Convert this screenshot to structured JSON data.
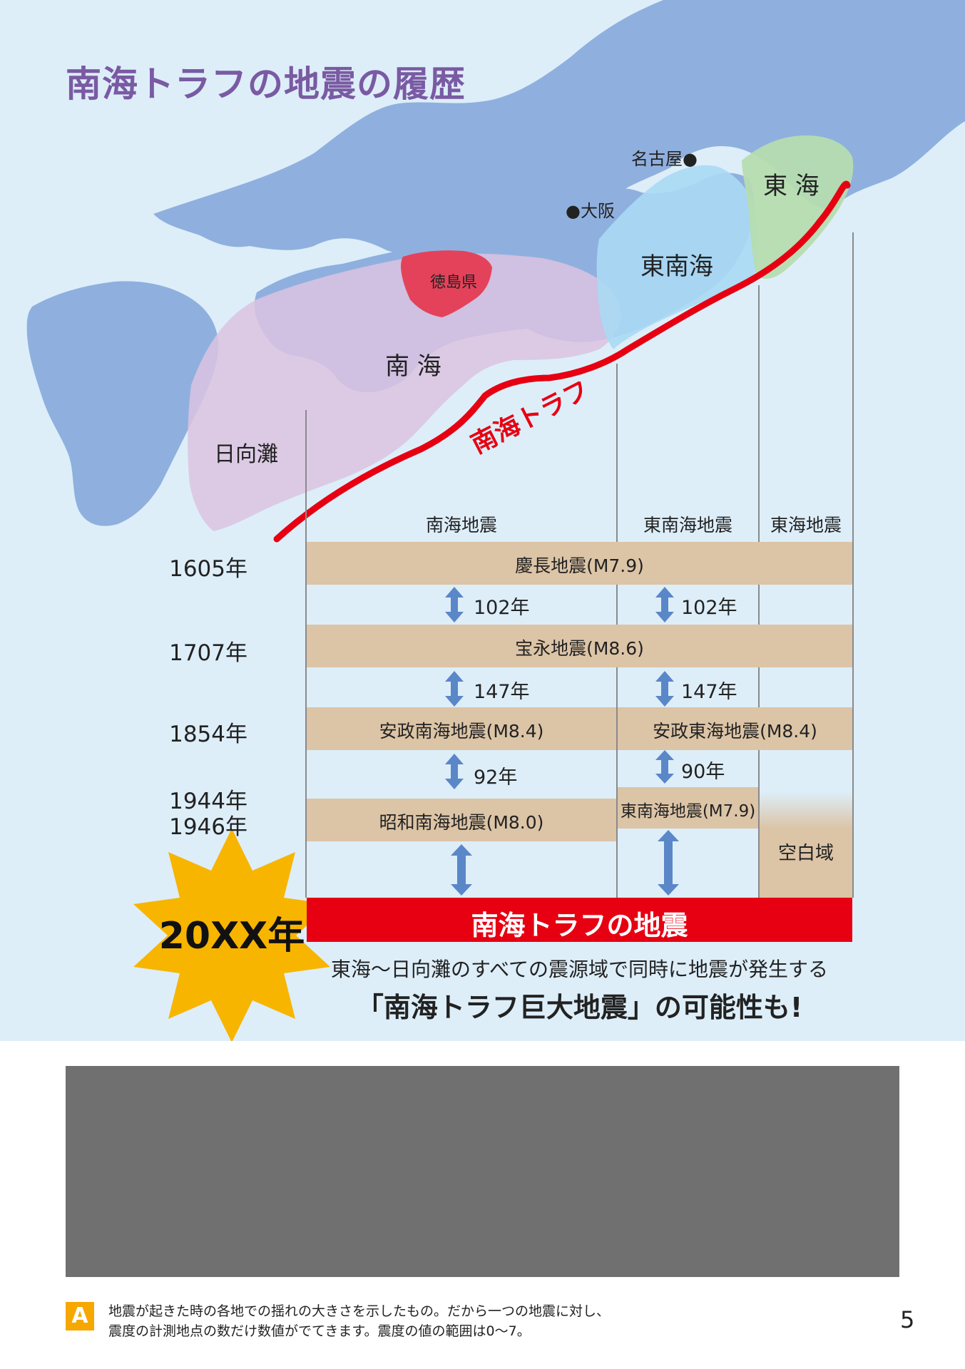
{
  "title": "南海トラフの地震の履歴",
  "map": {
    "cities": {
      "nagoya": "名古屋●",
      "osaka": "●大阪"
    },
    "prefecture": "徳島県",
    "regions": {
      "nankai": "南 海",
      "tonankai": "東南海",
      "tokai": "東 海",
      "hyuganada": "日向灘"
    },
    "trough_label": "南海トラフ",
    "colors": {
      "sea": "#ddeef9",
      "land": "#8fb0de",
      "nankai_zone": "#dcc3e2",
      "tonankai_zone": "#aad9f4",
      "tokai_zone": "#b6dcb0",
      "trough": "#e60012",
      "prefecture": "#e4425a"
    }
  },
  "timeline": {
    "columns": [
      "南海地震",
      "東南海地震",
      "東海地震"
    ],
    "rows": [
      {
        "year": "1605年",
        "bands": [
          "慶長地震(M7.9)"
        ]
      },
      {
        "year": "1707年",
        "bands": [
          "宝永地震(M8.6)"
        ]
      },
      {
        "year": "1854年",
        "bands": [
          "安政南海地震(M8.4)",
          "安政東海地震(M8.4)"
        ]
      },
      {
        "year": "1944年",
        "bands": [
          "東南海地震(M7.9)"
        ]
      },
      {
        "year": "1946年",
        "bands": [
          "昭和南海地震(M8.0)"
        ]
      }
    ],
    "intervals": [
      "102年",
      "102年",
      "147年",
      "147年",
      "92年",
      "90年"
    ],
    "blank_zone": "空白域",
    "future_year": "20XX年",
    "future_label": "南海トラフの地震",
    "band_color": "#dcc4a6",
    "future_color": "#e60012",
    "starburst_color": "#f7b500"
  },
  "conclusion": {
    "line1": "東海〜日向灘のすべての震源域で同時に地震が発生する",
    "line2": "「南海トラフ巨大地震」の可能性も!"
  },
  "footnote": {
    "badge": "A",
    "line1": "地震が起きた時の各地での揺れの大きさを示したもの。だから一つの地震に対し、",
    "line2": "震度の計測地点の数だけ数値がでてきます。震度の値の範囲は0〜7。"
  },
  "page_number": "5"
}
